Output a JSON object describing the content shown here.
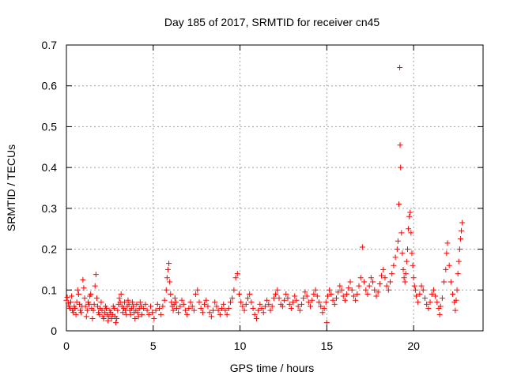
{
  "chart_data": {
    "type": "scatter",
    "title": "Day 185 of 2017, SRMTID for receiver cn45",
    "xlabel": "GPS time / hours",
    "ylabel": "SRMTID / TECUs",
    "xlim": [
      0,
      24
    ],
    "ylim": [
      0,
      0.7
    ],
    "xticks": [
      0,
      5,
      10,
      15,
      20
    ],
    "xtick_labels": [
      "0",
      "5",
      "10",
      "15",
      "20"
    ],
    "yticks": [
      0,
      0.1,
      0.2,
      0.3,
      0.4,
      0.5,
      0.6,
      0.7
    ],
    "ytick_labels": [
      "0",
      "0.1",
      "0.2",
      "0.3",
      "0.4",
      "0.5",
      "0.6",
      "0.7"
    ],
    "grid": true,
    "marker": "+",
    "colors": {
      "points": "#ff0000",
      "grid": "#a0a0a0",
      "axes": "#000000"
    },
    "series": [
      {
        "name": "SRMTID",
        "points": [
          [
            0.0,
            0.075
          ],
          [
            0.05,
            0.082
          ],
          [
            0.1,
            0.068
          ],
          [
            0.15,
            0.06
          ],
          [
            0.2,
            0.055
          ],
          [
            0.25,
            0.07
          ],
          [
            0.3,
            0.085
          ],
          [
            0.35,
            0.05
          ],
          [
            0.4,
            0.045
          ],
          [
            0.45,
            0.06
          ],
          [
            0.5,
            0.055
          ],
          [
            0.55,
            0.04
          ],
          [
            0.6,
            0.07
          ],
          [
            0.65,
            0.1
          ],
          [
            0.7,
            0.09
          ],
          [
            0.75,
            0.065
          ],
          [
            0.8,
            0.05
          ],
          [
            0.85,
            0.045
          ],
          [
            0.9,
            0.06
          ],
          [
            0.95,
            0.125
          ],
          [
            1.0,
            0.105
          ],
          [
            1.05,
            0.08
          ],
          [
            1.1,
            0.06
          ],
          [
            1.15,
            0.035
          ],
          [
            1.2,
            0.05
          ],
          [
            1.25,
            0.07
          ],
          [
            1.3,
            0.065
          ],
          [
            1.35,
            0.085
          ],
          [
            1.4,
            0.09
          ],
          [
            1.45,
            0.055
          ],
          [
            1.5,
            0.03
          ],
          [
            1.55,
            0.05
          ],
          [
            1.6,
            0.065
          ],
          [
            1.65,
            0.11
          ],
          [
            1.7,
            0.138
          ],
          [
            1.75,
            0.08
          ],
          [
            1.8,
            0.06
          ],
          [
            1.85,
            0.045
          ],
          [
            1.9,
            0.04
          ],
          [
            1.95,
            0.055
          ],
          [
            2.0,
            0.07
          ],
          [
            2.05,
            0.05
          ],
          [
            2.1,
            0.035
          ],
          [
            2.15,
            0.03
          ],
          [
            2.2,
            0.045
          ],
          [
            2.25,
            0.06
          ],
          [
            2.3,
            0.055
          ],
          [
            2.35,
            0.04
          ],
          [
            2.4,
            0.025
          ],
          [
            2.45,
            0.035
          ],
          [
            2.5,
            0.05
          ],
          [
            2.55,
            0.045
          ],
          [
            2.6,
            0.03
          ],
          [
            2.65,
            0.04
          ],
          [
            2.7,
            0.06
          ],
          [
            2.75,
            0.055
          ],
          [
            2.8,
            0.035
          ],
          [
            2.85,
            0.02
          ],
          [
            2.9,
            0.03
          ],
          [
            2.95,
            0.05
          ],
          [
            3.0,
            0.065
          ],
          [
            3.05,
            0.08
          ],
          [
            3.1,
            0.07
          ],
          [
            3.15,
            0.09
          ],
          [
            3.2,
            0.06
          ],
          [
            3.25,
            0.045
          ],
          [
            3.3,
            0.055
          ],
          [
            3.35,
            0.07
          ],
          [
            3.4,
            0.05
          ],
          [
            3.45,
            0.04
          ],
          [
            3.5,
            0.06
          ],
          [
            3.55,
            0.075
          ],
          [
            3.6,
            0.065
          ],
          [
            3.65,
            0.05
          ],
          [
            3.7,
            0.04
          ],
          [
            3.75,
            0.055
          ],
          [
            3.8,
            0.07
          ],
          [
            3.85,
            0.06
          ],
          [
            3.9,
            0.045
          ],
          [
            3.95,
            0.03
          ],
          [
            4.0,
            0.05
          ],
          [
            4.05,
            0.065
          ],
          [
            4.1,
            0.045
          ],
          [
            4.15,
            0.035
          ],
          [
            4.2,
            0.055
          ],
          [
            4.25,
            0.07
          ],
          [
            4.3,
            0.06
          ],
          [
            4.35,
            0.04
          ],
          [
            4.45,
            0.055
          ],
          [
            4.55,
            0.065
          ],
          [
            4.65,
            0.05
          ],
          [
            4.75,
            0.04
          ],
          [
            4.85,
            0.06
          ],
          [
            4.95,
            0.045
          ],
          [
            5.05,
            0.03
          ],
          [
            5.15,
            0.05
          ],
          [
            5.25,
            0.065
          ],
          [
            5.35,
            0.055
          ],
          [
            5.45,
            0.04
          ],
          [
            5.55,
            0.06
          ],
          [
            5.65,
            0.075
          ],
          [
            5.75,
            0.1
          ],
          [
            5.8,
            0.13
          ],
          [
            5.85,
            0.15
          ],
          [
            5.9,
            0.165
          ],
          [
            5.95,
            0.12
          ],
          [
            6.0,
            0.09
          ],
          [
            6.05,
            0.07
          ],
          [
            6.1,
            0.06
          ],
          [
            6.15,
            0.05
          ],
          [
            6.2,
            0.065
          ],
          [
            6.25,
            0.08
          ],
          [
            6.3,
            0.07
          ],
          [
            6.35,
            0.055
          ],
          [
            6.45,
            0.045
          ],
          [
            6.55,
            0.06
          ],
          [
            6.65,
            0.075
          ],
          [
            6.75,
            0.065
          ],
          [
            6.85,
            0.05
          ],
          [
            6.95,
            0.04
          ],
          [
            7.05,
            0.055
          ],
          [
            7.15,
            0.07
          ],
          [
            7.25,
            0.06
          ],
          [
            7.35,
            0.05
          ],
          [
            7.45,
            0.09
          ],
          [
            7.55,
            0.1
          ],
          [
            7.65,
            0.07
          ],
          [
            7.75,
            0.055
          ],
          [
            7.85,
            0.045
          ],
          [
            7.95,
            0.065
          ],
          [
            8.05,
            0.075
          ],
          [
            8.15,
            0.06
          ],
          [
            8.25,
            0.045
          ],
          [
            8.35,
            0.035
          ],
          [
            8.45,
            0.05
          ],
          [
            8.55,
            0.07
          ],
          [
            8.65,
            0.06
          ],
          [
            8.75,
            0.05
          ],
          [
            8.85,
            0.04
          ],
          [
            8.95,
            0.055
          ],
          [
            9.05,
            0.065
          ],
          [
            9.15,
            0.05
          ],
          [
            9.25,
            0.04
          ],
          [
            9.35,
            0.055
          ],
          [
            9.45,
            0.07
          ],
          [
            9.55,
            0.08
          ],
          [
            9.65,
            0.1
          ],
          [
            9.75,
            0.13
          ],
          [
            9.85,
            0.14
          ],
          [
            9.95,
            0.09
          ],
          [
            10.05,
            0.07
          ],
          [
            10.15,
            0.06
          ],
          [
            10.25,
            0.05
          ],
          [
            10.35,
            0.065
          ],
          [
            10.45,
            0.08
          ],
          [
            10.55,
            0.09
          ],
          [
            10.65,
            0.07
          ],
          [
            10.75,
            0.055
          ],
          [
            10.85,
            0.04
          ],
          [
            10.95,
            0.03
          ],
          [
            11.05,
            0.05
          ],
          [
            11.15,
            0.065
          ],
          [
            11.25,
            0.055
          ],
          [
            11.35,
            0.045
          ],
          [
            11.45,
            0.06
          ],
          [
            11.55,
            0.075
          ],
          [
            11.65,
            0.065
          ],
          [
            11.75,
            0.05
          ],
          [
            11.85,
            0.06
          ],
          [
            11.95,
            0.08
          ],
          [
            12.05,
            0.09
          ],
          [
            12.15,
            0.1
          ],
          [
            12.25,
            0.08
          ],
          [
            12.35,
            0.065
          ],
          [
            12.45,
            0.06
          ],
          [
            12.55,
            0.075
          ],
          [
            12.65,
            0.09
          ],
          [
            12.75,
            0.08
          ],
          [
            12.85,
            0.065
          ],
          [
            12.95,
            0.055
          ],
          [
            13.05,
            0.07
          ],
          [
            13.15,
            0.085
          ],
          [
            13.25,
            0.075
          ],
          [
            13.35,
            0.06
          ],
          [
            13.45,
            0.05
          ],
          [
            13.55,
            0.065
          ],
          [
            13.65,
            0.08
          ],
          [
            13.75,
            0.095
          ],
          [
            13.85,
            0.085
          ],
          [
            13.95,
            0.07
          ],
          [
            14.05,
            0.06
          ],
          [
            14.15,
            0.075
          ],
          [
            14.25,
            0.09
          ],
          [
            14.35,
            0.1
          ],
          [
            14.45,
            0.085
          ],
          [
            14.55,
            0.07
          ],
          [
            14.65,
            0.06
          ],
          [
            14.75,
            0.045
          ],
          [
            14.85,
            0.055
          ],
          [
            14.95,
            0.07
          ],
          [
            15.0,
            0.02
          ],
          [
            15.05,
            0.085
          ],
          [
            15.15,
            0.1
          ],
          [
            15.25,
            0.09
          ],
          [
            15.35,
            0.075
          ],
          [
            15.45,
            0.065
          ],
          [
            15.55,
            0.08
          ],
          [
            15.65,
            0.095
          ],
          [
            15.75,
            0.11
          ],
          [
            15.85,
            0.1
          ],
          [
            15.95,
            0.085
          ],
          [
            16.05,
            0.075
          ],
          [
            16.15,
            0.09
          ],
          [
            16.25,
            0.105
          ],
          [
            16.35,
            0.12
          ],
          [
            16.45,
            0.1
          ],
          [
            16.55,
            0.085
          ],
          [
            16.65,
            0.075
          ],
          [
            16.75,
            0.09
          ],
          [
            16.85,
            0.11
          ],
          [
            16.95,
            0.13
          ],
          [
            17.05,
            0.205
          ],
          [
            17.15,
            0.12
          ],
          [
            17.25,
            0.1
          ],
          [
            17.35,
            0.09
          ],
          [
            17.45,
            0.11
          ],
          [
            17.55,
            0.13
          ],
          [
            17.65,
            0.12
          ],
          [
            17.75,
            0.1
          ],
          [
            17.85,
            0.085
          ],
          [
            17.95,
            0.095
          ],
          [
            18.05,
            0.115
          ],
          [
            18.15,
            0.135
          ],
          [
            18.25,
            0.15
          ],
          [
            18.35,
            0.13
          ],
          [
            18.45,
            0.11
          ],
          [
            18.55,
            0.1
          ],
          [
            18.65,
            0.12
          ],
          [
            18.75,
            0.14
          ],
          [
            18.85,
            0.16
          ],
          [
            18.95,
            0.18
          ],
          [
            19.05,
            0.2
          ],
          [
            19.1,
            0.22
          ],
          [
            19.15,
            0.31
          ],
          [
            19.2,
            0.645
          ],
          [
            19.22,
            0.455
          ],
          [
            19.25,
            0.4
          ],
          [
            19.3,
            0.24
          ],
          [
            19.35,
            0.19
          ],
          [
            19.4,
            0.15
          ],
          [
            19.45,
            0.13
          ],
          [
            19.5,
            0.12
          ],
          [
            19.55,
            0.14
          ],
          [
            19.6,
            0.17
          ],
          [
            19.65,
            0.2
          ],
          [
            19.7,
            0.25
          ],
          [
            19.75,
            0.28
          ],
          [
            19.8,
            0.29
          ],
          [
            19.85,
            0.24
          ],
          [
            19.9,
            0.19
          ],
          [
            19.95,
            0.16
          ],
          [
            20.0,
            0.13
          ],
          [
            20.05,
            0.11
          ],
          [
            20.1,
            0.1
          ],
          [
            20.15,
            0.085
          ],
          [
            20.25,
            0.07
          ],
          [
            20.35,
            0.09
          ],
          [
            20.45,
            0.11
          ],
          [
            20.55,
            0.1
          ],
          [
            20.65,
            0.08
          ],
          [
            20.75,
            0.065
          ],
          [
            20.85,
            0.055
          ],
          [
            20.95,
            0.07
          ],
          [
            21.05,
            0.09
          ],
          [
            21.15,
            0.1
          ],
          [
            21.25,
            0.085
          ],
          [
            21.35,
            0.07
          ],
          [
            21.45,
            0.055
          ],
          [
            21.5,
            0.04
          ],
          [
            21.55,
            0.06
          ],
          [
            21.65,
            0.08
          ],
          [
            21.75,
            0.12
          ],
          [
            21.85,
            0.15
          ],
          [
            21.9,
            0.19
          ],
          [
            21.95,
            0.215
          ],
          [
            22.05,
            0.16
          ],
          [
            22.15,
            0.12
          ],
          [
            22.25,
            0.09
          ],
          [
            22.35,
            0.07
          ],
          [
            22.4,
            0.05
          ],
          [
            22.45,
            0.075
          ],
          [
            22.5,
            0.1
          ],
          [
            22.55,
            0.14
          ],
          [
            22.6,
            0.17
          ],
          [
            22.65,
            0.2
          ],
          [
            22.7,
            0.225
          ],
          [
            22.75,
            0.245
          ],
          [
            22.8,
            0.265
          ]
        ]
      }
    ]
  }
}
